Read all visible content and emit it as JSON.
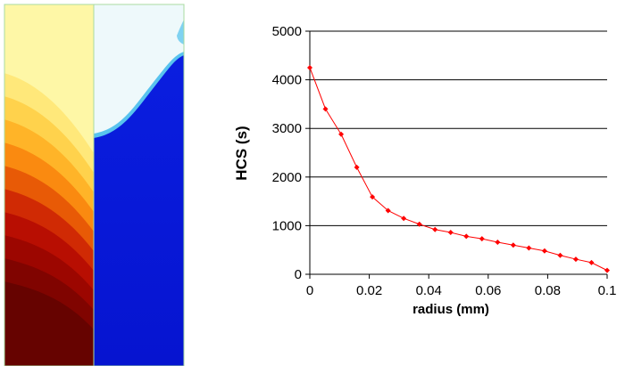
{
  "contour_panel": {
    "left_field_colors": [
      "#fef7a6",
      "#ffe87a",
      "#ffd24c",
      "#ffb428",
      "#fa8a10",
      "#e85a06",
      "#d02a04",
      "#b80e02",
      "#9c0600",
      "#800400",
      "#660300"
    ],
    "right_field_colors": {
      "top": "#eef9fb",
      "edge": "#58c3ee",
      "bottom": "#0616d8"
    }
  },
  "chart_data": {
    "type": "line",
    "title": "",
    "xlabel": "radius (mm)",
    "ylabel": "HCS (s)",
    "xlim": [
      0,
      0.1
    ],
    "ylim": [
      0,
      5000
    ],
    "x_ticks": [
      "0",
      "0.02",
      "0.04",
      "0.06",
      "0.08",
      "0.1"
    ],
    "y_ticks": [
      "0",
      "1000",
      "2000",
      "3000",
      "4000",
      "5000"
    ],
    "grid": "horizontal",
    "legend": "none",
    "series": [
      {
        "color": "#ff0000",
        "x": [
          0,
          0.00526,
          0.01053,
          0.01579,
          0.02105,
          0.02632,
          0.03158,
          0.03684,
          0.04211,
          0.04737,
          0.05263,
          0.05789,
          0.06316,
          0.06842,
          0.07368,
          0.07895,
          0.08421,
          0.08947,
          0.09474,
          0.1
        ],
        "y": [
          4250,
          3400,
          2880,
          2200,
          1590,
          1310,
          1150,
          1030,
          920,
          860,
          780,
          730,
          660,
          600,
          540,
          480,
          390,
          310,
          240,
          80
        ]
      }
    ]
  }
}
